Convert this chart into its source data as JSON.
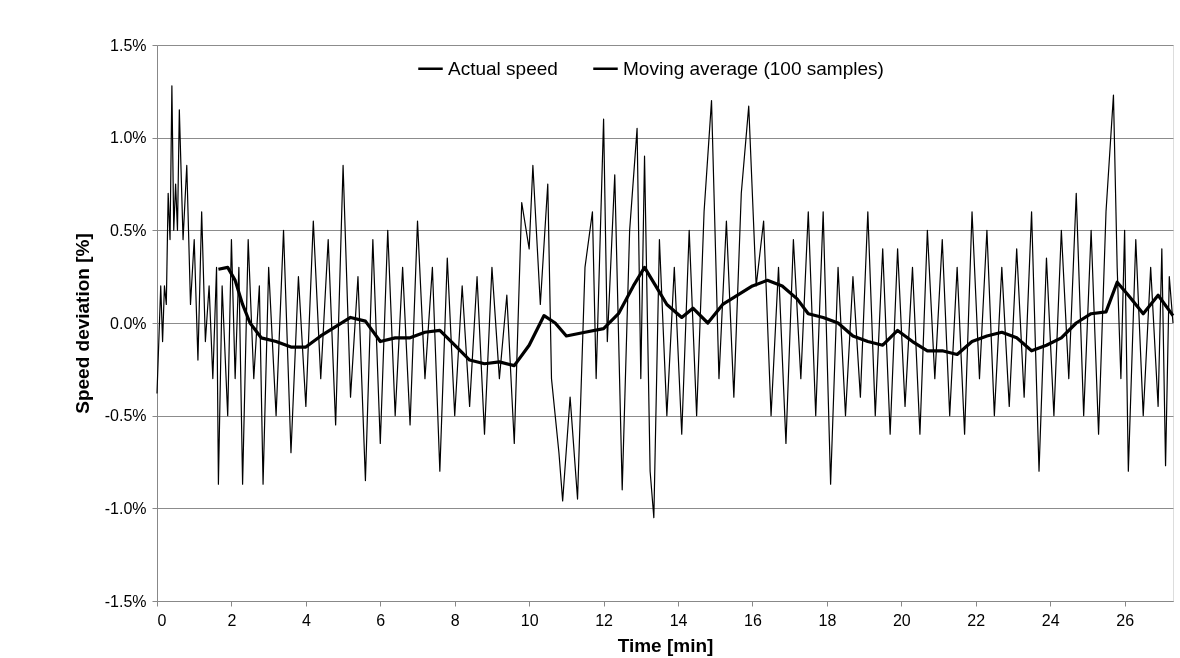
{
  "chart_data": {
    "type": "line",
    "xlabel": "Time [min]",
    "ylabel": "Speed deviation [%]",
    "xlim": [
      0,
      27.3
    ],
    "xticks": [
      0,
      2,
      4,
      6,
      8,
      10,
      12,
      14,
      16,
      18,
      20,
      22,
      24,
      26
    ],
    "ylim": [
      -1.5,
      1.5
    ],
    "yticks": [
      {
        "value": -1.5,
        "label": "-1.5%"
      },
      {
        "value": -1.0,
        "label": "-1.0%"
      },
      {
        "value": -0.5,
        "label": "-0.5%"
      },
      {
        "value": 0.0,
        "label": "0.0%"
      },
      {
        "value": 0.5,
        "label": "0.5%"
      },
      {
        "value": 1.0,
        "label": "1.0%"
      },
      {
        "value": 1.5,
        "label": "1.5%"
      }
    ],
    "grid": "y",
    "legend": "top",
    "marker": "none",
    "line_style": "solid",
    "series": [
      {
        "name": "Actual speed",
        "color": "#000000",
        "x": [
          0,
          0.1,
          0.15,
          0.2,
          0.25,
          0.3,
          0.35,
          0.4,
          0.45,
          0.5,
          0.55,
          0.6,
          0.7,
          0.8,
          0.9,
          1.0,
          1.1,
          1.2,
          1.3,
          1.4,
          1.5,
          1.6,
          1.65,
          1.75,
          1.9,
          2.0,
          2.1,
          2.2,
          2.3,
          2.45,
          2.6,
          2.75,
          2.85,
          3.0,
          3.2,
          3.4,
          3.6,
          3.8,
          4.0,
          4.2,
          4.4,
          4.6,
          4.8,
          5.0,
          5.2,
          5.4,
          5.6,
          5.8,
          6.0,
          6.2,
          6.4,
          6.6,
          6.8,
          7.0,
          7.2,
          7.4,
          7.6,
          7.8,
          8.0,
          8.2,
          8.4,
          8.6,
          8.8,
          9.0,
          9.2,
          9.4,
          9.6,
          9.8,
          10.0,
          10.1,
          10.3,
          10.5,
          10.6,
          10.8,
          10.9,
          11.1,
          11.3,
          11.5,
          11.7,
          11.8,
          12.0,
          12.1,
          12.3,
          12.5,
          12.7,
          12.9,
          13.0,
          13.1,
          13.25,
          13.35,
          13.5,
          13.7,
          13.9,
          14.1,
          14.3,
          14.5,
          14.7,
          14.9,
          15.1,
          15.3,
          15.5,
          15.7,
          15.9,
          16.1,
          16.3,
          16.5,
          16.7,
          16.9,
          17.1,
          17.3,
          17.5,
          17.7,
          17.9,
          18.1,
          18.3,
          18.5,
          18.7,
          18.9,
          19.1,
          19.3,
          19.5,
          19.7,
          19.9,
          20.1,
          20.3,
          20.5,
          20.7,
          20.9,
          21.1,
          21.3,
          21.5,
          21.7,
          21.9,
          22.1,
          22.3,
          22.5,
          22.7,
          22.9,
          23.1,
          23.3,
          23.5,
          23.7,
          23.9,
          24.1,
          24.3,
          24.5,
          24.7,
          24.9,
          25.1,
          25.3,
          25.5,
          25.7,
          25.8,
          25.9,
          26.0,
          26.1,
          26.3,
          26.5,
          26.7,
          26.9,
          27.0,
          27.1,
          27.2,
          27.3
        ],
        "values": [
          -0.38,
          0.2,
          -0.1,
          0.2,
          0.1,
          0.7,
          0.45,
          1.28,
          0.5,
          0.75,
          0.5,
          1.15,
          0.45,
          0.85,
          0.1,
          0.45,
          -0.2,
          0.6,
          -0.1,
          0.2,
          -0.3,
          0.3,
          -0.87,
          0.2,
          -0.5,
          0.45,
          -0.3,
          0.3,
          -0.87,
          0.45,
          -0.3,
          0.2,
          -0.87,
          0.3,
          -0.5,
          0.5,
          -0.7,
          0.25,
          -0.45,
          0.55,
          -0.3,
          0.45,
          -0.55,
          0.85,
          -0.4,
          0.25,
          -0.85,
          0.45,
          -0.65,
          0.5,
          -0.5,
          0.3,
          -0.55,
          0.55,
          -0.3,
          0.3,
          -0.8,
          0.35,
          -0.5,
          0.2,
          -0.45,
          0.25,
          -0.6,
          0.3,
          -0.3,
          0.15,
          -0.65,
          0.65,
          0.4,
          0.85,
          0.1,
          0.75,
          -0.3,
          -0.7,
          -0.96,
          -0.4,
          -0.95,
          0.3,
          0.6,
          -0.3,
          1.1,
          -0.1,
          0.8,
          -0.9,
          0.5,
          1.05,
          -0.3,
          0.9,
          -0.8,
          -1.05,
          0.45,
          -0.5,
          0.3,
          -0.6,
          0.5,
          -0.5,
          0.6,
          1.2,
          -0.3,
          0.55,
          -0.4,
          0.7,
          1.17,
          0.2,
          0.55,
          -0.5,
          0.3,
          -0.65,
          0.45,
          -0.3,
          0.6,
          -0.5,
          0.6,
          -0.87,
          0.3,
          -0.5,
          0.25,
          -0.4,
          0.6,
          -0.5,
          0.4,
          -0.6,
          0.4,
          -0.45,
          0.3,
          -0.6,
          0.5,
          -0.3,
          0.45,
          -0.5,
          0.3,
          -0.6,
          0.6,
          -0.3,
          0.5,
          -0.5,
          0.3,
          -0.45,
          0.4,
          -0.4,
          0.6,
          -0.8,
          0.35,
          -0.5,
          0.5,
          -0.3,
          0.7,
          -0.5,
          0.5,
          -0.6,
          0.6,
          1.23,
          0.3,
          -0.3,
          0.5,
          -0.8,
          0.45,
          -0.5,
          0.3,
          -0.45,
          0.4,
          -0.77,
          0.25,
          0.0
        ]
      },
      {
        "name": "Moving average (100 samples)",
        "color": "#000000",
        "x": [
          1.65,
          1.9,
          2.1,
          2.3,
          2.5,
          2.8,
          3.2,
          3.6,
          4.0,
          4.4,
          4.8,
          5.2,
          5.6,
          6.0,
          6.4,
          6.8,
          7.2,
          7.6,
          8.0,
          8.4,
          8.8,
          9.2,
          9.6,
          10.0,
          10.4,
          10.7,
          11.0,
          11.5,
          12.0,
          12.4,
          12.8,
          13.1,
          13.4,
          13.7,
          14.1,
          14.4,
          14.8,
          15.2,
          15.6,
          16.0,
          16.4,
          16.8,
          17.2,
          17.5,
          17.9,
          18.3,
          18.7,
          19.1,
          19.5,
          19.9,
          20.3,
          20.7,
          21.1,
          21.5,
          21.9,
          22.3,
          22.7,
          23.1,
          23.5,
          23.9,
          24.3,
          24.7,
          25.1,
          25.5,
          25.8,
          26.1,
          26.5,
          26.9,
          27.3
        ],
        "values": [
          0.29,
          0.3,
          0.23,
          0.1,
          0.0,
          -0.08,
          -0.1,
          -0.13,
          -0.13,
          -0.07,
          -0.02,
          0.03,
          0.01,
          -0.1,
          -0.08,
          -0.08,
          -0.05,
          -0.04,
          -0.12,
          -0.2,
          -0.22,
          -0.21,
          -0.23,
          -0.12,
          0.04,
          0.0,
          -0.07,
          -0.05,
          -0.03,
          0.05,
          0.2,
          0.3,
          0.2,
          0.1,
          0.03,
          0.08,
          0.0,
          0.1,
          0.15,
          0.2,
          0.23,
          0.2,
          0.13,
          0.05,
          0.03,
          0.0,
          -0.07,
          -0.1,
          -0.12,
          -0.04,
          -0.1,
          -0.15,
          -0.15,
          -0.17,
          -0.1,
          -0.07,
          -0.05,
          -0.08,
          -0.15,
          -0.12,
          -0.08,
          0.0,
          0.05,
          0.06,
          0.22,
          0.15,
          0.05,
          0.15,
          0.04
        ]
      }
    ]
  }
}
